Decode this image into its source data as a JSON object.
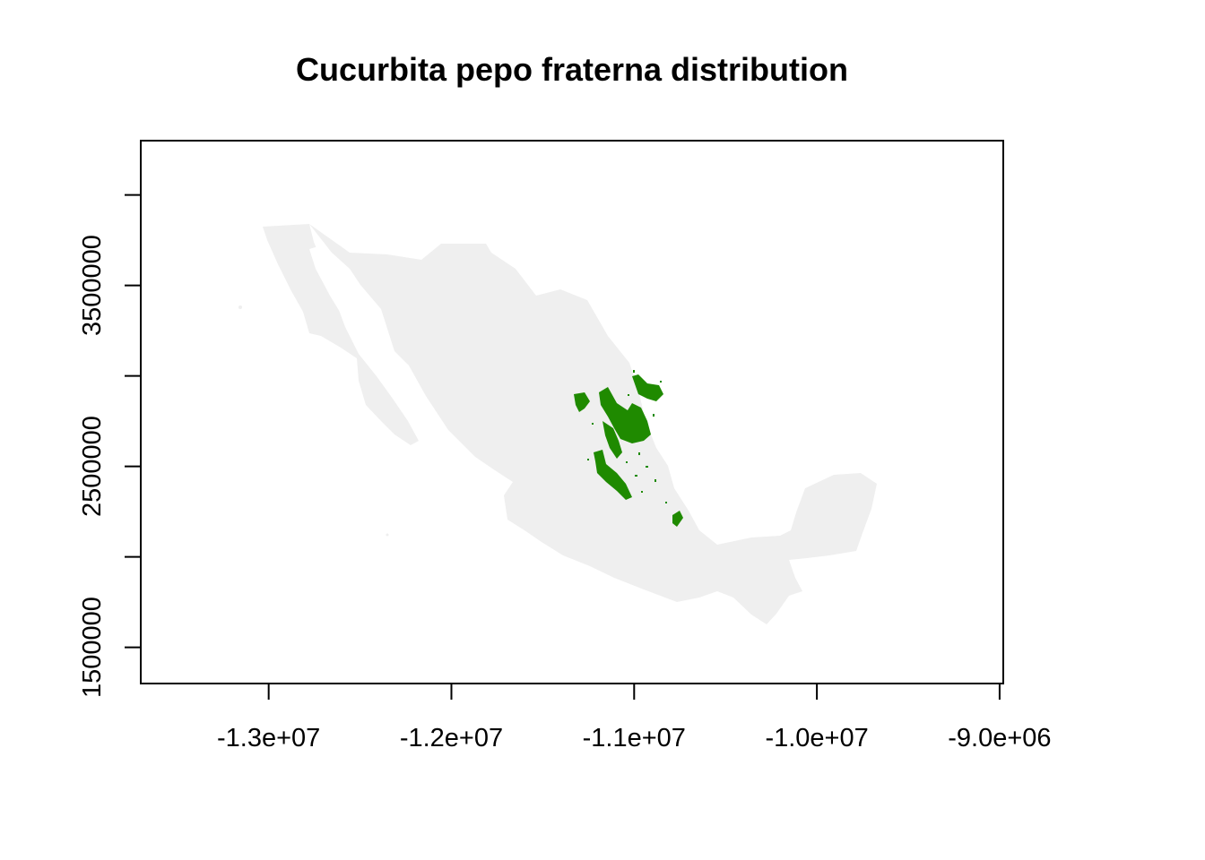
{
  "title": "Cucurbita pepo fraterna distribution",
  "colors": {
    "background_land": "#efefef",
    "distribution": "#1f8a00",
    "frame": "#000000"
  },
  "chart_data": {
    "type": "map",
    "title": "Cucurbita pepo fraterna distribution",
    "xlim": [
      -13700000,
      -8980000
    ],
    "ylim": [
      1300000,
      4300000
    ],
    "x_ticks": [
      -13000000,
      -12000000,
      -11000000,
      -10000000,
      -9000000
    ],
    "x_tick_labels": [
      "-1.3e+07",
      "-1.2e+07",
      "-1.1e+07",
      "-1.0e+07",
      "-9.0e+06"
    ],
    "y_ticks": [
      1500000,
      2000000,
      2500000,
      3000000,
      3500000,
      4000000
    ],
    "y_tick_labels": [
      "1500000",
      "",
      "2500000",
      "",
      "3500000",
      ""
    ],
    "layers": [
      "mexico-outline",
      "species-distribution"
    ]
  }
}
